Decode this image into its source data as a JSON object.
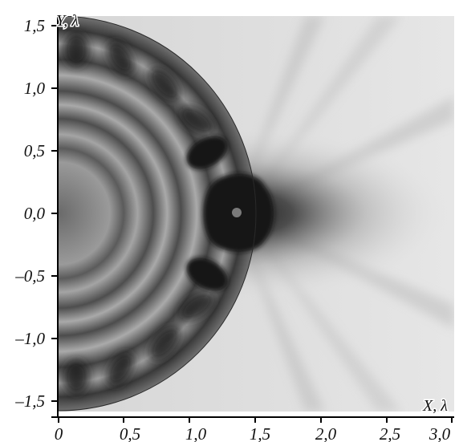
{
  "plot": {
    "x_axis_label": "X, λ",
    "y_axis_label": "Y, λ",
    "x_ticks": [
      "0",
      "0,5",
      "1,0",
      "1,5",
      "2,0",
      "2,5",
      "3,0"
    ],
    "y_ticks": [
      "1,5",
      "1,0",
      "0,5",
      "0,0",
      "–0,5",
      "–1,0",
      "–1,5"
    ]
  },
  "colors": {
    "background": "#e4e4e4",
    "dark": "#141414",
    "axis": "#000000"
  }
}
